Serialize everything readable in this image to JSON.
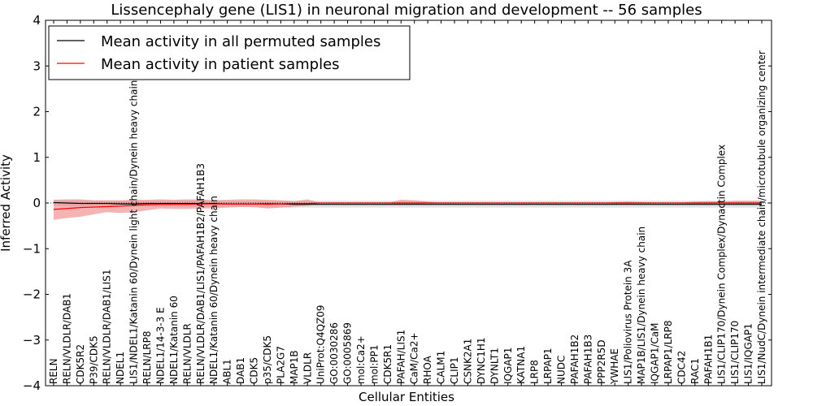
{
  "chart_data": {
    "type": "line",
    "title": "Lissencephaly gene (LIS1) in neuronal migration and development -- 56 samples",
    "xlabel": "Cellular Entities",
    "ylabel": "Inferred Activity",
    "ylim": [
      -4,
      4
    ],
    "yticks": [
      -4,
      -3,
      -2,
      -1,
      0,
      1,
      2,
      3,
      4
    ],
    "yticklabels": [
      "−4",
      "−3",
      "−2",
      "−1",
      "0",
      "1",
      "2",
      "3",
      "4"
    ],
    "legend_position": "top-left",
    "grid": false,
    "categories": [
      "RELN",
      "RELN/VLDLR/DAB1",
      "CDK5R2",
      "P39/CDK5",
      "RELN/VLDLR/DAB1/LIS1",
      "NDEL1",
      "LIS1/NDEL1/Katanin 60/Dynein light chain/Dynein heavy chain",
      "RELN/LRP8",
      "NDEL1/14-3-3 E",
      "NDEL1/Katanin 60",
      "RELN/VLDLR",
      "RELN/VLDLR/DAB1/LIS1/PAFAH1B2/PAFAH1B3",
      "NDEL1/Katanin 60/Dynein heavy chain",
      "ABL1",
      "DAB1",
      "CDK5",
      "p35/CDK5",
      "PLA2G7",
      "MAP1B",
      "VLDLR",
      "UniProt:Q4QZ09",
      "GO:0030286",
      "GO:0005869",
      "mol:Ca2+",
      "mol:PP1",
      "CDK5R1",
      "PAFAH/LIS1",
      "CaM/Ca2+",
      "RHOA",
      "CALM1",
      "CLIP1",
      "CSNK2A1",
      "DYNC1H1",
      "DYNLT1",
      "IQGAP1",
      "KATNA1",
      "LRP8",
      "LRPAP1",
      "NUDC",
      "PAFAH1B2",
      "PAFAH1B3",
      "PPP2R5D",
      "YWHAE",
      "LIS1/Poliovirus Protein 3A",
      "MAP1B/LIS1/Dynein heavy chain",
      "IQGAP1/CaM",
      "LRPAP1/LRP8",
      "CDC42",
      "RAC1",
      "PAFAH1B1",
      "LIS1/CLIP170/Dynein Complex/Dynactin Complex",
      "LIS1/CLIP170",
      "LIS1/IQGAP1",
      "LIS1/NudC/Dynein intermediate chain/microtubule organizing center"
    ],
    "series": [
      {
        "name": "Mean activity in all permuted samples",
        "color": "#000000",
        "band_color": "#c8c8c8",
        "values": [
          0.01,
          0.0,
          -0.01,
          -0.01,
          -0.01,
          -0.02,
          -0.02,
          -0.01,
          -0.01,
          -0.01,
          -0.01,
          -0.01,
          -0.01,
          -0.02,
          -0.02,
          -0.02,
          -0.02,
          -0.02,
          -0.03,
          -0.03,
          -0.03,
          -0.03,
          -0.03,
          -0.03,
          -0.03,
          -0.03,
          -0.03,
          -0.03,
          -0.03,
          -0.03,
          -0.03,
          -0.03,
          -0.03,
          -0.03,
          -0.03,
          -0.03,
          -0.03,
          -0.03,
          -0.03,
          -0.03,
          -0.03,
          -0.03,
          -0.03,
          -0.03,
          -0.03,
          -0.03,
          -0.03,
          -0.03,
          -0.03,
          -0.03,
          -0.03,
          -0.03,
          -0.03,
          -0.03
        ],
        "lower": [
          -0.06,
          -0.07,
          -0.08,
          -0.08,
          -0.09,
          -0.08,
          -0.08,
          -0.08,
          -0.08,
          -0.08,
          -0.08,
          -0.08,
          -0.09,
          -0.09,
          -0.09,
          -0.1,
          -0.1,
          -0.1,
          -0.1,
          -0.1,
          -0.1,
          -0.1,
          -0.1,
          -0.1,
          -0.1,
          -0.1,
          -0.1,
          -0.1,
          -0.1,
          -0.1,
          -0.1,
          -0.1,
          -0.1,
          -0.1,
          -0.1,
          -0.1,
          -0.1,
          -0.1,
          -0.1,
          -0.1,
          -0.1,
          -0.1,
          -0.1,
          -0.1,
          -0.1,
          -0.1,
          -0.1,
          -0.1,
          -0.1,
          -0.1,
          -0.1,
          -0.1,
          -0.1,
          -0.1
        ],
        "upper": [
          0.07,
          0.06,
          0.06,
          0.05,
          0.05,
          0.05,
          0.05,
          0.05,
          0.06,
          0.06,
          0.06,
          0.06,
          0.06,
          0.05,
          0.05,
          0.05,
          0.05,
          0.05,
          0.05,
          0.05,
          0.05,
          0.05,
          0.05,
          0.05,
          0.05,
          0.05,
          0.05,
          0.05,
          0.05,
          0.05,
          0.05,
          0.05,
          0.05,
          0.05,
          0.05,
          0.05,
          0.05,
          0.05,
          0.05,
          0.05,
          0.05,
          0.05,
          0.05,
          0.05,
          0.05,
          0.05,
          0.05,
          0.05,
          0.05,
          0.05,
          0.05,
          0.05,
          0.05,
          0.05
        ]
      },
      {
        "name": "Mean activity in patient samples",
        "color": "#ff0000",
        "band_color": "#f08080",
        "values": [
          -0.14,
          -0.12,
          -0.1,
          -0.09,
          -0.08,
          -0.07,
          -0.05,
          -0.04,
          -0.03,
          -0.03,
          -0.03,
          -0.02,
          -0.02,
          -0.02,
          -0.02,
          -0.02,
          -0.03,
          -0.02,
          -0.01,
          -0.01,
          0.0,
          0.0,
          0.0,
          0.0,
          0.0,
          0.0,
          0.0,
          0.0,
          0.0,
          0.0,
          0.0,
          0.0,
          0.0,
          0.0,
          0.0,
          0.0,
          0.0,
          0.0,
          0.0,
          0.0,
          0.0,
          0.0,
          0.0,
          0.0,
          0.0,
          0.0,
          0.0,
          0.0,
          0.0,
          0.0,
          0.0,
          0.0,
          0.0,
          0.0
        ],
        "lower": [
          -0.37,
          -0.33,
          -0.3,
          -0.25,
          -0.2,
          -0.22,
          -0.2,
          -0.16,
          -0.12,
          -0.13,
          -0.13,
          -0.12,
          -0.12,
          -0.1,
          -0.09,
          -0.09,
          -0.12,
          -0.1,
          -0.08,
          -0.06,
          0.0,
          0.0,
          0.0,
          0.0,
          0.0,
          0.0,
          -0.04,
          -0.03,
          -0.01,
          0.0,
          0.0,
          0.0,
          0.0,
          0.0,
          0.0,
          0.0,
          0.0,
          0.0,
          0.0,
          0.0,
          0.0,
          0.0,
          -0.02,
          -0.02,
          -0.01,
          -0.01,
          -0.01,
          -0.01,
          -0.02,
          -0.02,
          -0.01,
          -0.02,
          -0.02,
          -0.02
        ],
        "upper": [
          0.07,
          0.08,
          0.08,
          0.06,
          0.06,
          0.06,
          0.07,
          0.07,
          0.08,
          0.07,
          0.08,
          0.08,
          0.06,
          0.07,
          0.08,
          0.08,
          0.07,
          0.06,
          0.04,
          0.08,
          0.0,
          0.0,
          0.0,
          0.0,
          0.0,
          0.0,
          0.07,
          0.06,
          0.03,
          0.0,
          0.0,
          0.0,
          0.0,
          0.0,
          0.0,
          0.0,
          0.0,
          0.0,
          0.0,
          0.0,
          0.0,
          0.0,
          0.02,
          0.03,
          0.02,
          0.01,
          0.01,
          0.01,
          0.03,
          0.04,
          0.03,
          0.05,
          0.05,
          0.05
        ]
      }
    ]
  }
}
